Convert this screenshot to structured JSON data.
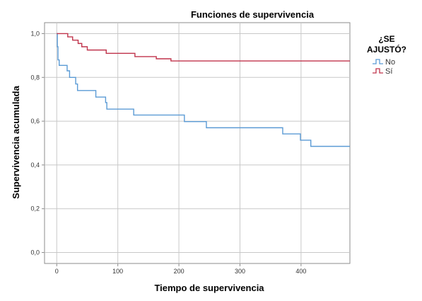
{
  "chart_data": {
    "type": "line",
    "title": "Funciones de supervivencia",
    "xlabel": "Tiempo de supervivencia",
    "ylabel": "Supervivencia acumulada",
    "xlim": [
      -20,
      480
    ],
    "ylim": [
      -0.05,
      1.05
    ],
    "xticks": [
      0,
      100,
      200,
      300,
      400
    ],
    "yticks": [
      0.0,
      0.2,
      0.4,
      0.6,
      0.8,
      1.0
    ],
    "ytick_labels": [
      "0,0",
      "0,2",
      "0,4",
      "0,6",
      "0,8",
      "1,0"
    ],
    "grid": true,
    "step": true,
    "legend": {
      "title_lines": [
        "¿SE",
        "AJUSTÓ?"
      ],
      "position": "right"
    },
    "series": [
      {
        "name": "No",
        "color": "#5b9bd5",
        "points": [
          [
            0,
            1.0
          ],
          [
            1,
            0.94
          ],
          [
            2,
            0.88
          ],
          [
            4,
            0.855
          ],
          [
            17,
            0.83
          ],
          [
            21,
            0.8
          ],
          [
            31,
            0.77
          ],
          [
            34,
            0.74
          ],
          [
            64,
            0.71
          ],
          [
            80,
            0.685
          ],
          [
            82,
            0.655
          ],
          [
            126,
            0.628
          ],
          [
            209,
            0.598
          ],
          [
            245,
            0.57
          ],
          [
            370,
            0.542
          ],
          [
            399,
            0.513
          ],
          [
            416,
            0.485
          ],
          [
            480,
            0.485
          ]
        ]
      },
      {
        "name": "Sí",
        "color": "#c0344c",
        "points": [
          [
            0,
            1.0
          ],
          [
            18,
            0.985
          ],
          [
            26,
            0.97
          ],
          [
            35,
            0.955
          ],
          [
            41,
            0.94
          ],
          [
            50,
            0.925
          ],
          [
            81,
            0.91
          ],
          [
            128,
            0.895
          ],
          [
            163,
            0.885
          ],
          [
            187,
            0.875
          ],
          [
            480,
            0.875
          ]
        ]
      }
    ]
  }
}
